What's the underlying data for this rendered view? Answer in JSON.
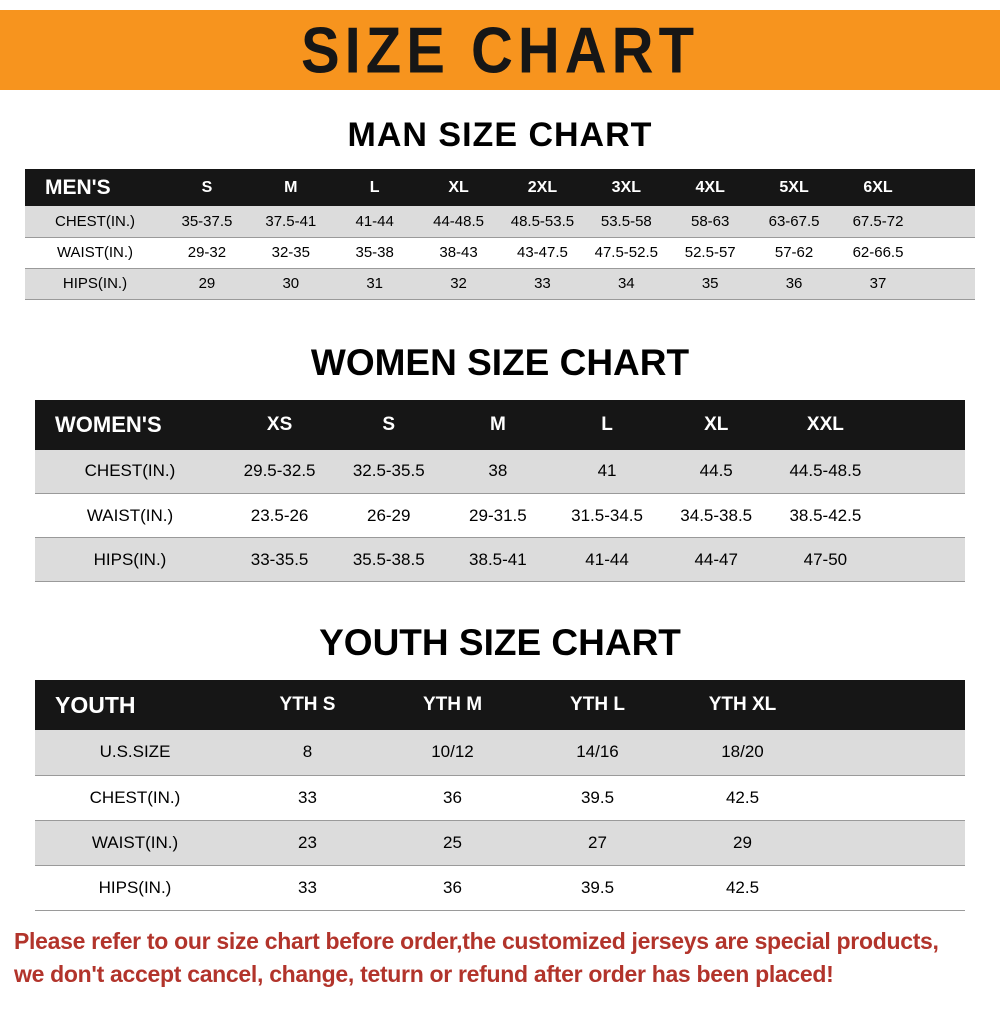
{
  "banner": {
    "title": "SIZE CHART"
  },
  "colors": {
    "banner_bg": "#f7941e",
    "header_bg": "#161616",
    "stripe_bg": "#dcdcdc",
    "footer_text": "#b2342b"
  },
  "sections": [
    {
      "heading": "MAN SIZE CHART",
      "table": {
        "corner": "MEN'S",
        "columns": [
          "S",
          "M",
          "L",
          "XL",
          "2XL",
          "3XL",
          "4XL",
          "5XL",
          "6XL"
        ],
        "rows": [
          {
            "label": "CHEST(IN.)",
            "values": [
              "35-37.5",
              "37.5-41",
              "41-44",
              "44-48.5",
              "48.5-53.5",
              "53.5-58",
              "58-63",
              "63-67.5",
              "67.5-72"
            ]
          },
          {
            "label": "WAIST(IN.)",
            "values": [
              "29-32",
              "32-35",
              "35-38",
              "38-43",
              "43-47.5",
              "47.5-52.5",
              "52.5-57",
              "57-62",
              "62-66.5"
            ]
          },
          {
            "label": "HIPS(IN.)",
            "values": [
              "29",
              "30",
              "31",
              "32",
              "33",
              "34",
              "35",
              "36",
              "37"
            ]
          }
        ]
      }
    },
    {
      "heading": "WOMEN SIZE CHART",
      "table": {
        "corner": "WOMEN'S",
        "columns": [
          "XS",
          "S",
          "M",
          "L",
          "XL",
          "XXL"
        ],
        "rows": [
          {
            "label": "CHEST(IN.)",
            "values": [
              "29.5-32.5",
              "32.5-35.5",
              "38",
              "41",
              "44.5",
              "44.5-48.5"
            ]
          },
          {
            "label": "WAIST(IN.)",
            "values": [
              "23.5-26",
              "26-29",
              "29-31.5",
              "31.5-34.5",
              "34.5-38.5",
              "38.5-42.5"
            ]
          },
          {
            "label": "HIPS(IN.)",
            "values": [
              "33-35.5",
              "35.5-38.5",
              "38.5-41",
              "41-44",
              "44-47",
              "47-50"
            ]
          }
        ]
      }
    },
    {
      "heading": "YOUTH SIZE CHART",
      "table": {
        "corner": "YOUTH",
        "columns": [
          "YTH S",
          "YTH M",
          "YTH L",
          "YTH XL"
        ],
        "rows": [
          {
            "label": "U.S.SIZE",
            "values": [
              "8",
              "10/12",
              "14/16",
              "18/20"
            ]
          },
          {
            "label": "CHEST(IN.)",
            "values": [
              "33",
              "36",
              "39.5",
              "42.5"
            ]
          },
          {
            "label": "WAIST(IN.)",
            "values": [
              "23",
              "25",
              "27",
              "29"
            ]
          },
          {
            "label": "HIPS(IN.)",
            "values": [
              "33",
              "36",
              "39.5",
              "42.5"
            ]
          }
        ]
      }
    }
  ],
  "footer": {
    "line1": "Please refer to our size chart before order,the customized jerseys are special products,",
    "line2": "we don't accept cancel, change, teturn or refund after order has been placed!"
  }
}
